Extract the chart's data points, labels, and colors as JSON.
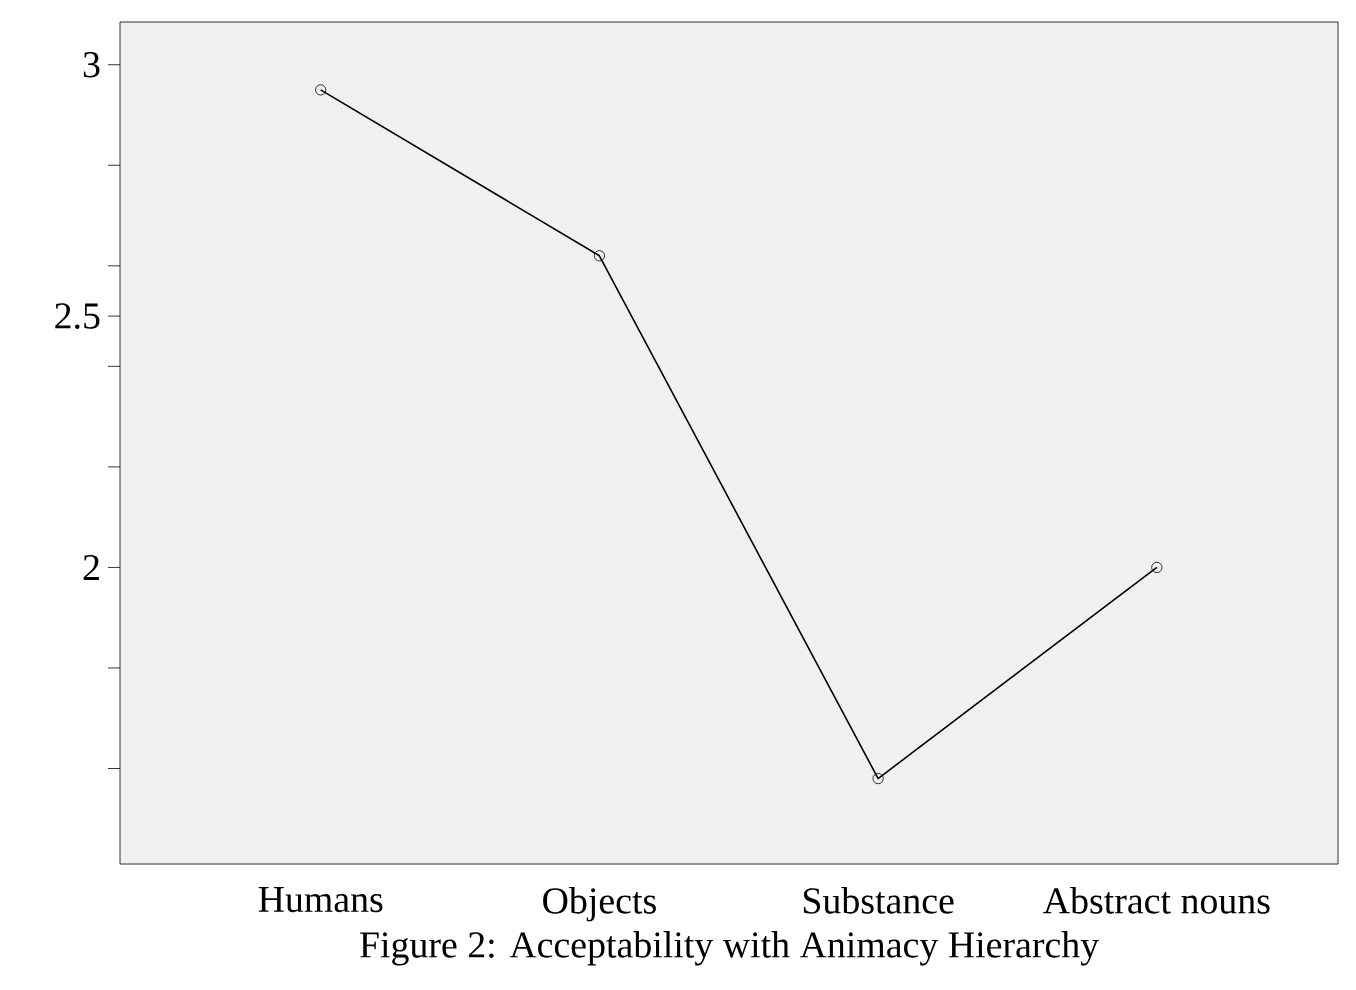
{
  "chart_data": {
    "type": "line",
    "title": "Figure 2: Acceptability with Animacy Hierarchy",
    "categories": [
      "Humans",
      "Objects",
      "Substance",
      "Abstract nouns"
    ],
    "series": [
      {
        "color": "#000000",
        "values": [
          2.95,
          2.62,
          1.58,
          2.0
        ]
      }
    ],
    "ylim": [
      1.41,
      3.085
    ],
    "yticks": [
      3,
      {
        "value": 2.8,
        "label": null
      },
      {
        "value": 2.6,
        "label": null
      },
      2.5,
      {
        "value": 2.4,
        "label": null
      },
      {
        "value": 2.2,
        "label": null
      },
      2,
      {
        "value": 1.8,
        "label": null
      },
      {
        "value": 1.6,
        "label": null
      }
    ],
    "marker": "circle",
    "line_style": "solid"
  }
}
